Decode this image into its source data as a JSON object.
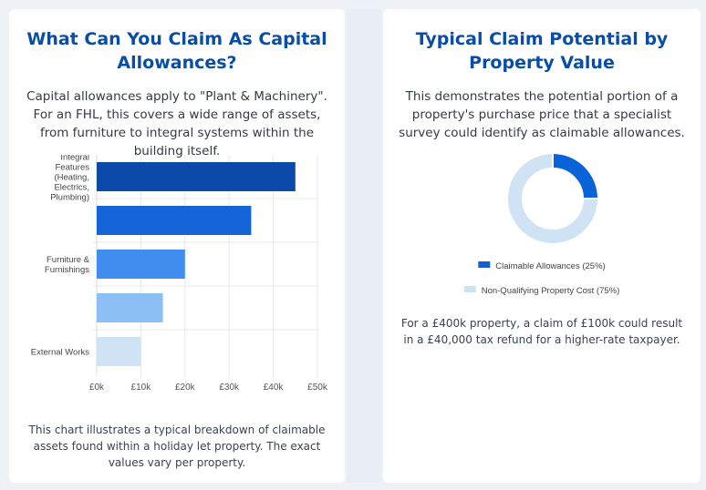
{
  "left": {
    "title": "What Can You Claim As Capital Allowances?",
    "description": "Capital allowances apply to \"Plant & Machinery\". For an FHL, this covers a wide range of assets, from furniture to integral systems within the building itself.",
    "footnote": "This chart illustrates a typical breakdown of claimable assets found within a holiday let property. The exact values vary per property."
  },
  "right": {
    "title": "Typical Claim Potential by Property Value",
    "description": "This demonstrates the potential portion of a property's purchase price that a specialist survey could identify as claimable allowances.",
    "footnote": "For a £400k property, a claim of £100k could result in a £40,000 tax refund for a higher-rate taxpayer."
  },
  "chart_data": [
    {
      "type": "bar",
      "orientation": "horizontal",
      "categories": [
        [
          "Integral",
          "Features",
          "(Heating,",
          "Electrics,",
          "Plumbing)"
        ],
        [],
        [
          "Furniture &",
          "Furnishings"
        ],
        [],
        [
          "External Works"
        ]
      ],
      "values": [
        45000,
        35000,
        20000,
        15000,
        10000
      ],
      "colors": [
        "#0b4aa8",
        "#1565d8",
        "#3f8ef0",
        "#8cbff3",
        "#cfe3f5"
      ],
      "xlim": [
        0,
        50000
      ],
      "xticks": [
        "£0k",
        "£10k",
        "£20k",
        "£30k",
        "£40k",
        "£50k"
      ],
      "grid": true,
      "title": "",
      "xlabel": "",
      "ylabel": ""
    },
    {
      "type": "pie",
      "variant": "doughnut",
      "slices": [
        {
          "label": "Claimable Allowances (25%)",
          "value": 25,
          "color": "#0b63d8"
        },
        {
          "label": "Non-Qualifying Property Cost (75%)",
          "value": 75,
          "color": "#cfe3f5"
        }
      ],
      "legend": "bottom"
    }
  ]
}
